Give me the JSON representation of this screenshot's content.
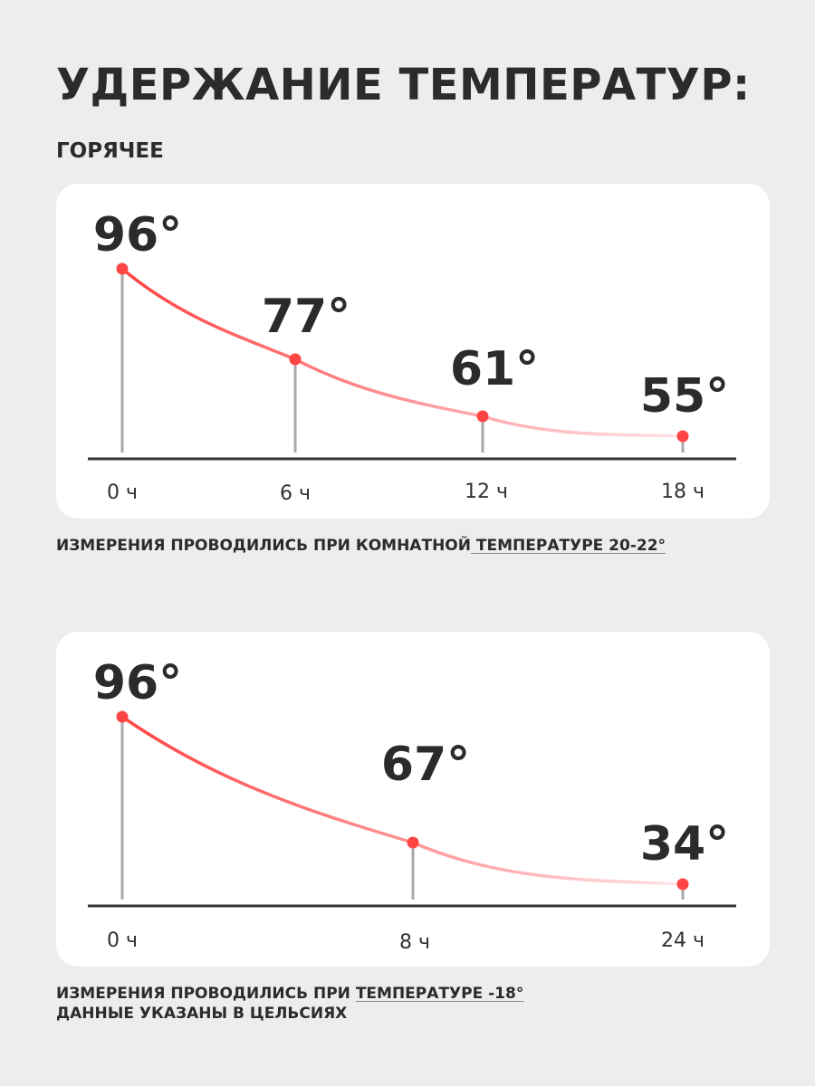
{
  "title": "УДЕРЖАНИЕ ТЕМПЕРАТУР:",
  "subtitle": "ГОРЯЧЕЕ",
  "captions": {
    "c1_a": "ИЗМЕРЕНИЯ ПРОВОДИЛИСЬ ПРИ КОМНАТНОЙ",
    "c1_b": " ТЕМПЕРАТУРЕ 20-22°",
    "c2_a": "ИЗМЕРЕНИЯ ПРОВОДИЛИСЬ ПРИ ",
    "c2_b": "ТЕМПЕРАТУРЕ -18°",
    "c2_c": "ДАННЫЕ УКАЗАНЫ В ЦЕЛЬСИЯХ"
  },
  "colors": {
    "line_start": "#ff4444",
    "line_end": "#ffe4e8",
    "point": "#ff4444",
    "stem": "#aaaaaa",
    "axis": "#333333"
  },
  "chart_data": [
    {
      "type": "line",
      "categories": [
        "0 ч",
        "6 ч",
        "12 ч",
        "18 ч"
      ],
      "x": [
        0,
        6,
        12,
        18
      ],
      "values": [
        96,
        77,
        61,
        55
      ],
      "labels": [
        "96°",
        "77°",
        "61°",
        "55°"
      ]
    },
    {
      "type": "line",
      "categories": [
        "0 ч",
        "8 ч",
        "24 ч"
      ],
      "x": [
        0,
        8,
        24
      ],
      "values": [
        96,
        67,
        34
      ],
      "labels": [
        "96°",
        "67°",
        "34°"
      ]
    }
  ]
}
